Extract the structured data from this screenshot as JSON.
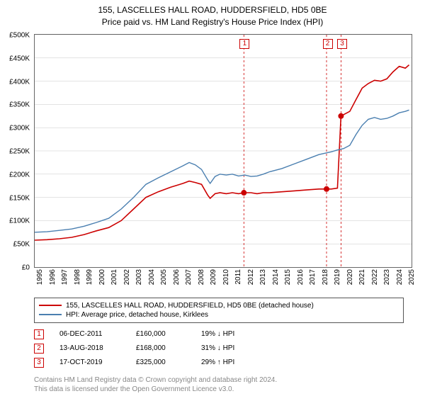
{
  "title_line1": "155, LASCELLES HALL ROAD, HUDDERSFIELD, HD5 0BE",
  "title_line2": "Price paid vs. HM Land Registry's House Price Index (HPI)",
  "chart": {
    "type": "line",
    "background_color": "#ffffff",
    "grid_color": "#c8c8c8",
    "axis_color": "#666666",
    "x_min": 1995,
    "x_max": 2025.5,
    "x_ticks": [
      "1995",
      "1996",
      "1997",
      "1998",
      "1999",
      "2000",
      "2001",
      "2002",
      "2003",
      "2004",
      "2005",
      "2006",
      "2007",
      "2008",
      "2009",
      "2010",
      "2011",
      "2012",
      "2013",
      "2014",
      "2015",
      "2016",
      "2017",
      "2018",
      "2019",
      "2020",
      "2021",
      "2022",
      "2023",
      "2024",
      "2025"
    ],
    "y_min": 0,
    "y_max": 500000,
    "y_ticks": [
      "£0",
      "£50K",
      "£100K",
      "£150K",
      "£200K",
      "£250K",
      "£300K",
      "£350K",
      "£400K",
      "£450K",
      "£500K"
    ],
    "y_tick_values": [
      0,
      50000,
      100000,
      150000,
      200000,
      250000,
      300000,
      350000,
      400000,
      450000,
      500000
    ],
    "series": [
      {
        "name": "subject",
        "label": "155, LASCELLES HALL ROAD, HUDDERSFIELD, HD5 0BE (detached house)",
        "color": "#cc0000",
        "width": 1.6,
        "points": [
          [
            1995,
            58000
          ],
          [
            1996,
            59000
          ],
          [
            1997,
            61000
          ],
          [
            1998,
            64000
          ],
          [
            1999,
            70000
          ],
          [
            2000,
            78000
          ],
          [
            2001,
            85000
          ],
          [
            2002,
            100000
          ],
          [
            2003,
            125000
          ],
          [
            2004,
            150000
          ],
          [
            2005,
            162000
          ],
          [
            2006,
            172000
          ],
          [
            2007,
            180000
          ],
          [
            2007.5,
            185000
          ],
          [
            2008,
            182000
          ],
          [
            2008.5,
            178000
          ],
          [
            2009,
            155000
          ],
          [
            2009.2,
            148000
          ],
          [
            2009.6,
            158000
          ],
          [
            2010,
            160000
          ],
          [
            2010.5,
            158000
          ],
          [
            2011,
            160000
          ],
          [
            2011.5,
            158000
          ],
          [
            2011.93,
            160000
          ],
          [
            2012.5,
            160000
          ],
          [
            2013,
            158000
          ],
          [
            2013.5,
            160000
          ],
          [
            2014,
            160000
          ],
          [
            2015,
            162000
          ],
          [
            2016,
            164000
          ],
          [
            2017,
            166000
          ],
          [
            2018,
            168000
          ],
          [
            2018.62,
            168000
          ],
          [
            2019,
            168000
          ],
          [
            2019.5,
            170000
          ],
          [
            2019.79,
            325000
          ],
          [
            2020,
            328000
          ],
          [
            2020.5,
            335000
          ],
          [
            2021,
            360000
          ],
          [
            2021.5,
            385000
          ],
          [
            2022,
            395000
          ],
          [
            2022.5,
            402000
          ],
          [
            2023,
            400000
          ],
          [
            2023.5,
            405000
          ],
          [
            2024,
            420000
          ],
          [
            2024.5,
            432000
          ],
          [
            2025,
            428000
          ],
          [
            2025.3,
            435000
          ]
        ]
      },
      {
        "name": "hpi",
        "label": "HPI: Average price, detached house, Kirklees",
        "color": "#4a7fb0",
        "width": 1.4,
        "points": [
          [
            1995,
            75000
          ],
          [
            1996,
            76000
          ],
          [
            1997,
            79000
          ],
          [
            1998,
            82000
          ],
          [
            1999,
            88000
          ],
          [
            2000,
            96000
          ],
          [
            2001,
            105000
          ],
          [
            2002,
            125000
          ],
          [
            2003,
            150000
          ],
          [
            2004,
            178000
          ],
          [
            2005,
            192000
          ],
          [
            2006,
            205000
          ],
          [
            2007,
            218000
          ],
          [
            2007.5,
            225000
          ],
          [
            2008,
            220000
          ],
          [
            2008.5,
            210000
          ],
          [
            2009,
            188000
          ],
          [
            2009.2,
            180000
          ],
          [
            2009.6,
            195000
          ],
          [
            2010,
            200000
          ],
          [
            2010.5,
            198000
          ],
          [
            2011,
            200000
          ],
          [
            2011.5,
            196000
          ],
          [
            2012,
            198000
          ],
          [
            2012.5,
            195000
          ],
          [
            2013,
            196000
          ],
          [
            2013.5,
            200000
          ],
          [
            2014,
            205000
          ],
          [
            2015,
            212000
          ],
          [
            2016,
            222000
          ],
          [
            2017,
            232000
          ],
          [
            2018,
            242000
          ],
          [
            2019,
            248000
          ],
          [
            2019.5,
            252000
          ],
          [
            2020,
            255000
          ],
          [
            2020.5,
            262000
          ],
          [
            2021,
            285000
          ],
          [
            2021.5,
            305000
          ],
          [
            2022,
            318000
          ],
          [
            2022.5,
            322000
          ],
          [
            2023,
            318000
          ],
          [
            2023.5,
            320000
          ],
          [
            2024,
            325000
          ],
          [
            2024.5,
            332000
          ],
          [
            2025,
            335000
          ],
          [
            2025.3,
            338000
          ]
        ]
      }
    ],
    "markers": [
      {
        "x": 2011.93,
        "y": 160000,
        "color": "#cc0000"
      },
      {
        "x": 2018.62,
        "y": 168000,
        "color": "#cc0000"
      },
      {
        "x": 2019.79,
        "y": 325000,
        "color": "#cc0000"
      }
    ],
    "events": [
      {
        "num": "1",
        "x": 2011.93,
        "line_color": "#cc0000"
      },
      {
        "num": "2",
        "x": 2018.62,
        "line_color": "#cc0000"
      },
      {
        "num": "3",
        "x": 2019.79,
        "line_color": "#cc0000"
      }
    ],
    "marker_radius": 4,
    "label_fontsize": 10,
    "badge_top_offset": 6
  },
  "legend": [
    {
      "color": "#cc0000",
      "text": "155, LASCELLES HALL ROAD, HUDDERSFIELD, HD5 0BE (detached house)"
    },
    {
      "color": "#4a7fb0",
      "text": "HPI: Average price, detached house, Kirklees"
    }
  ],
  "sales": [
    {
      "num": "1",
      "badge_color": "#cc0000",
      "date": "06-DEC-2011",
      "price": "£160,000",
      "diff": "19% ↓ HPI"
    },
    {
      "num": "2",
      "badge_color": "#cc0000",
      "date": "13-AUG-2018",
      "price": "£168,000",
      "diff": "31% ↓ HPI"
    },
    {
      "num": "3",
      "badge_color": "#cc0000",
      "date": "17-OCT-2019",
      "price": "£325,000",
      "diff": "29% ↑ HPI"
    }
  ],
  "footer_line1": "Contains HM Land Registry data © Crown copyright and database right 2024.",
  "footer_line2": "This data is licensed under the Open Government Licence v3.0."
}
